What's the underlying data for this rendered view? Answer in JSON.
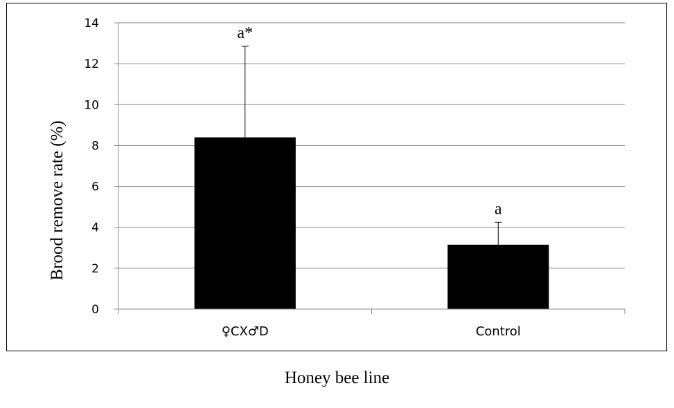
{
  "chart_data": {
    "type": "bar",
    "title": "",
    "xlabel": "Honey bee line",
    "ylabel": "Brood remove rate (%)",
    "ylim": [
      0,
      14
    ],
    "yticks": [
      0,
      2,
      4,
      6,
      8,
      10,
      12,
      14
    ],
    "grid": true,
    "categories": [
      "♀CX♂D",
      "Control"
    ],
    "values": [
      8.4,
      3.15
    ],
    "error_upper": [
      4.45,
      1.1
    ],
    "significance_labels": [
      "a*",
      "a"
    ],
    "bar_color": "#000000"
  }
}
